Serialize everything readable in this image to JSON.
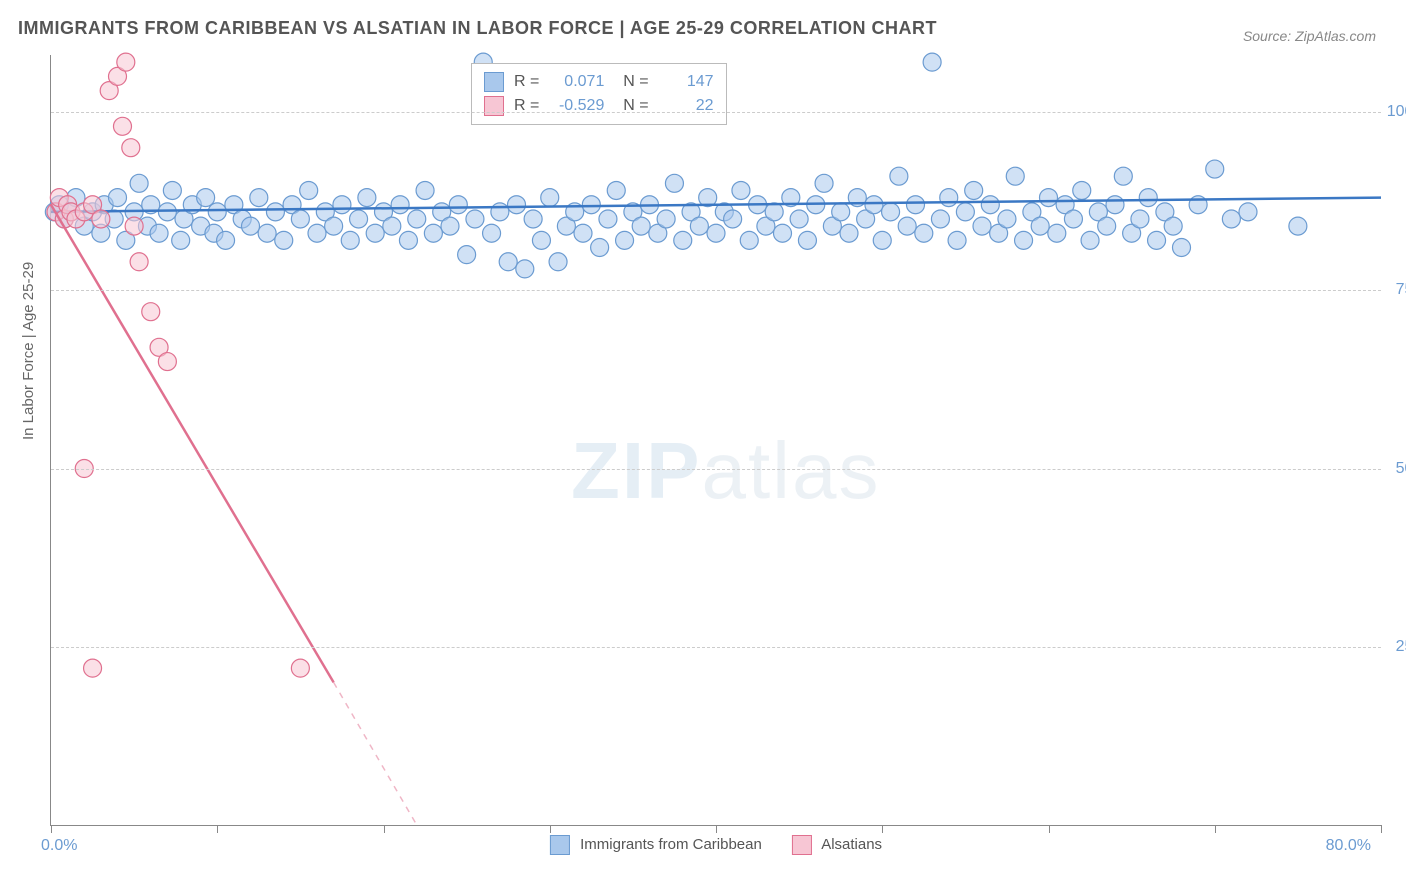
{
  "title": "IMMIGRANTS FROM CARIBBEAN VS ALSATIAN IN LABOR FORCE | AGE 25-29 CORRELATION CHART",
  "source": "Source: ZipAtlas.com",
  "y_axis_title": "In Labor Force | Age 25-29",
  "watermark": "ZIPatlas",
  "chart": {
    "type": "scatter",
    "background_color": "#ffffff",
    "grid_color": "#cccccc",
    "axis_color": "#888888",
    "xlim": [
      0,
      80
    ],
    "ylim": [
      0,
      108
    ],
    "x_tick_positions": [
      0,
      10,
      20,
      30,
      40,
      50,
      60,
      70,
      80
    ],
    "x_labels": {
      "min": "0.0%",
      "max": "80.0%"
    },
    "y_ticks": [
      {
        "value": 25,
        "label": "25.0%"
      },
      {
        "value": 50,
        "label": "50.0%"
      },
      {
        "value": 75,
        "label": "75.0%"
      },
      {
        "value": 100,
        "label": "100.0%"
      }
    ],
    "series": [
      {
        "name": "Immigrants from Caribbean",
        "marker_color_fill": "#a9c8ec",
        "marker_color_stroke": "#6b9bd1",
        "marker_opacity": 0.55,
        "marker_radius": 9,
        "line_color": "#3b78c4",
        "line_width": 2.5,
        "trend": {
          "x1": 0,
          "y1": 86,
          "x2": 80,
          "y2": 88
        },
        "R": "0.071",
        "N": "147",
        "points": [
          [
            0.2,
            86
          ],
          [
            0.5,
            87
          ],
          [
            0.8,
            85
          ],
          [
            1.2,
            86
          ],
          [
            1.5,
            88
          ],
          [
            2,
            84
          ],
          [
            2.5,
            86
          ],
          [
            3,
            83
          ],
          [
            3.2,
            87
          ],
          [
            3.8,
            85
          ],
          [
            4,
            88
          ],
          [
            4.5,
            82
          ],
          [
            5,
            86
          ],
          [
            5.3,
            90
          ],
          [
            5.8,
            84
          ],
          [
            6,
            87
          ],
          [
            6.5,
            83
          ],
          [
            7,
            86
          ],
          [
            7.3,
            89
          ],
          [
            7.8,
            82
          ],
          [
            8,
            85
          ],
          [
            8.5,
            87
          ],
          [
            9,
            84
          ],
          [
            9.3,
            88
          ],
          [
            9.8,
            83
          ],
          [
            10,
            86
          ],
          [
            10.5,
            82
          ],
          [
            11,
            87
          ],
          [
            11.5,
            85
          ],
          [
            12,
            84
          ],
          [
            12.5,
            88
          ],
          [
            13,
            83
          ],
          [
            13.5,
            86
          ],
          [
            14,
            82
          ],
          [
            14.5,
            87
          ],
          [
            15,
            85
          ],
          [
            15.5,
            89
          ],
          [
            16,
            83
          ],
          [
            16.5,
            86
          ],
          [
            17,
            84
          ],
          [
            17.5,
            87
          ],
          [
            18,
            82
          ],
          [
            18.5,
            85
          ],
          [
            19,
            88
          ],
          [
            19.5,
            83
          ],
          [
            20,
            86
          ],
          [
            20.5,
            84
          ],
          [
            21,
            87
          ],
          [
            21.5,
            82
          ],
          [
            22,
            85
          ],
          [
            22.5,
            89
          ],
          [
            23,
            83
          ],
          [
            23.5,
            86
          ],
          [
            24,
            84
          ],
          [
            24.5,
            87
          ],
          [
            25,
            80
          ],
          [
            25.5,
            85
          ],
          [
            26,
            107
          ],
          [
            26.5,
            83
          ],
          [
            27,
            86
          ],
          [
            27.5,
            79
          ],
          [
            28,
            87
          ],
          [
            28.5,
            78
          ],
          [
            29,
            85
          ],
          [
            29.5,
            82
          ],
          [
            30,
            88
          ],
          [
            30.5,
            79
          ],
          [
            31,
            84
          ],
          [
            31.5,
            86
          ],
          [
            32,
            83
          ],
          [
            32.5,
            87
          ],
          [
            33,
            81
          ],
          [
            33.5,
            85
          ],
          [
            34,
            89
          ],
          [
            34.5,
            82
          ],
          [
            35,
            86
          ],
          [
            35.5,
            84
          ],
          [
            36,
            87
          ],
          [
            36.5,
            83
          ],
          [
            37,
            85
          ],
          [
            37.5,
            90
          ],
          [
            38,
            82
          ],
          [
            38.5,
            86
          ],
          [
            39,
            84
          ],
          [
            39.5,
            88
          ],
          [
            40,
            83
          ],
          [
            40.5,
            86
          ],
          [
            41,
            85
          ],
          [
            41.5,
            89
          ],
          [
            42,
            82
          ],
          [
            42.5,
            87
          ],
          [
            43,
            84
          ],
          [
            43.5,
            86
          ],
          [
            44,
            83
          ],
          [
            44.5,
            88
          ],
          [
            45,
            85
          ],
          [
            45.5,
            82
          ],
          [
            46,
            87
          ],
          [
            46.5,
            90
          ],
          [
            47,
            84
          ],
          [
            47.5,
            86
          ],
          [
            48,
            83
          ],
          [
            48.5,
            88
          ],
          [
            49,
            85
          ],
          [
            49.5,
            87
          ],
          [
            50,
            82
          ],
          [
            50.5,
            86
          ],
          [
            51,
            91
          ],
          [
            51.5,
            84
          ],
          [
            52,
            87
          ],
          [
            52.5,
            83
          ],
          [
            53,
            107
          ],
          [
            53.5,
            85
          ],
          [
            54,
            88
          ],
          [
            54.5,
            82
          ],
          [
            55,
            86
          ],
          [
            55.5,
            89
          ],
          [
            56,
            84
          ],
          [
            56.5,
            87
          ],
          [
            57,
            83
          ],
          [
            57.5,
            85
          ],
          [
            58,
            91
          ],
          [
            58.5,
            82
          ],
          [
            59,
            86
          ],
          [
            59.5,
            84
          ],
          [
            60,
            88
          ],
          [
            60.5,
            83
          ],
          [
            61,
            87
          ],
          [
            61.5,
            85
          ],
          [
            62,
            89
          ],
          [
            62.5,
            82
          ],
          [
            63,
            86
          ],
          [
            63.5,
            84
          ],
          [
            64,
            87
          ],
          [
            64.5,
            91
          ],
          [
            65,
            83
          ],
          [
            65.5,
            85
          ],
          [
            66,
            88
          ],
          [
            66.5,
            82
          ],
          [
            67,
            86
          ],
          [
            67.5,
            84
          ],
          [
            68,
            81
          ],
          [
            69,
            87
          ],
          [
            70,
            92
          ],
          [
            71,
            85
          ],
          [
            72,
            86
          ],
          [
            75,
            84
          ]
        ]
      },
      {
        "name": "Alsatians",
        "marker_color_fill": "#f7c6d4",
        "marker_color_stroke": "#e0708f",
        "marker_opacity": 0.55,
        "marker_radius": 9,
        "line_color": "#e0708f",
        "line_width": 2.5,
        "trend": {
          "x1": 0,
          "y1": 87,
          "x2": 17,
          "y2": 20
        },
        "trend_dashed": {
          "x1": 17,
          "y1": 20,
          "x2": 22,
          "y2": 0
        },
        "R": "-0.529",
        "N": "22",
        "points": [
          [
            0.3,
            86
          ],
          [
            0.5,
            88
          ],
          [
            0.8,
            85
          ],
          [
            1.0,
            87
          ],
          [
            1.2,
            86
          ],
          [
            1.5,
            85
          ],
          [
            2,
            86
          ],
          [
            2.5,
            87
          ],
          [
            3,
            85
          ],
          [
            3.5,
            103
          ],
          [
            4,
            105
          ],
          [
            4.3,
            98
          ],
          [
            4.5,
            107
          ],
          [
            4.8,
            95
          ],
          [
            5,
            84
          ],
          [
            5.3,
            79
          ],
          [
            6,
            72
          ],
          [
            6.5,
            67
          ],
          [
            7,
            65
          ],
          [
            2,
            50
          ],
          [
            2.5,
            22
          ],
          [
            15,
            22
          ]
        ]
      }
    ],
    "legend_bottom": [
      {
        "label": "Immigrants from Caribbean",
        "fill": "#a9c8ec",
        "stroke": "#6b9bd1"
      },
      {
        "label": "Alsatians",
        "fill": "#f7c6d4",
        "stroke": "#e0708f"
      }
    ]
  }
}
